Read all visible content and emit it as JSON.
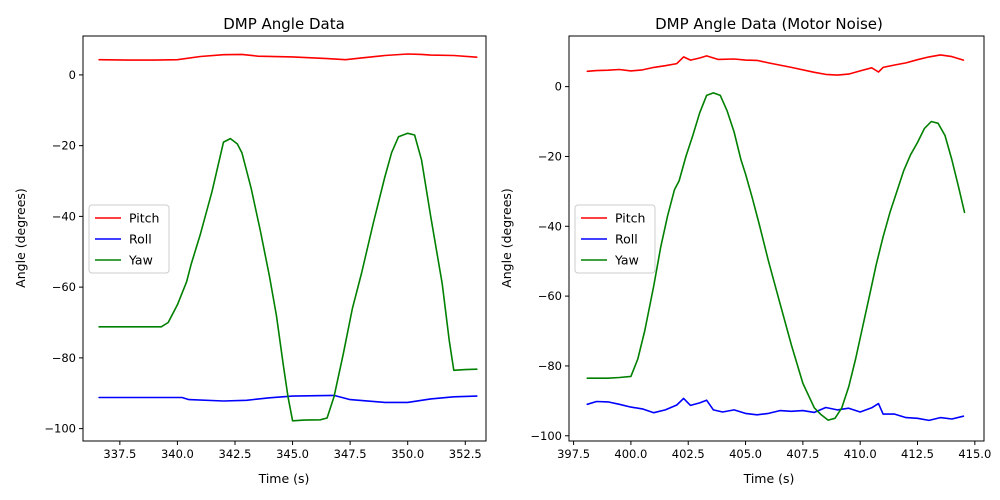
{
  "chart_data": [
    {
      "type": "line",
      "title": "DMP Angle Data",
      "xlabel": "Time (s)",
      "ylabel": "Angle (degrees)",
      "xlim": [
        335.9,
        353.4
      ],
      "ylim": [
        -103.5,
        11.0
      ],
      "xticks": [
        337.5,
        340.0,
        342.5,
        345.0,
        347.5,
        350.0,
        352.5
      ],
      "xtick_labels": [
        "337.5",
        "340.0",
        "342.5",
        "345.0",
        "347.5",
        "350.0",
        "352.5"
      ],
      "yticks": [
        0,
        -20,
        -40,
        -60,
        -80,
        -100
      ],
      "ytick_labels": [
        "0",
        "−20",
        "−40",
        "−60",
        "−80",
        "−100"
      ],
      "grid": false,
      "legend_position": "center-left",
      "series": [
        {
          "name": "Pitch",
          "color": "#ff0000",
          "x": [
            336.6,
            338.0,
            339.0,
            340.0,
            341.0,
            342.0,
            342.8,
            343.5,
            345.0,
            346.5,
            347.3,
            348.0,
            349.0,
            350.0,
            350.6,
            351.0,
            352.0,
            353.0
          ],
          "y": [
            4.3,
            4.2,
            4.2,
            4.3,
            5.2,
            5.7,
            5.8,
            5.3,
            5.1,
            4.6,
            4.3,
            4.8,
            5.5,
            5.9,
            5.8,
            5.6,
            5.5,
            5.0
          ]
        },
        {
          "name": "Roll",
          "color": "#0000ff",
          "x": [
            336.6,
            338.0,
            339.5,
            340.2,
            340.5,
            342.0,
            343.0,
            344.0,
            345.0,
            346.0,
            346.8,
            347.5,
            349.0,
            350.0,
            351.0,
            352.0,
            353.0
          ],
          "y": [
            -91.2,
            -91.2,
            -91.2,
            -91.2,
            -91.8,
            -92.2,
            -92.0,
            -91.3,
            -90.8,
            -90.7,
            -90.6,
            -91.8,
            -92.6,
            -92.6,
            -91.6,
            -91.0,
            -90.8
          ]
        },
        {
          "name": "Yaw",
          "color": "#008000",
          "x": [
            336.6,
            338.0,
            339.3,
            339.6,
            340.0,
            340.4,
            340.6,
            341.0,
            341.5,
            342.0,
            342.3,
            342.6,
            342.8,
            343.2,
            343.6,
            344.0,
            344.3,
            344.6,
            344.8,
            345.0,
            345.5,
            346.2,
            346.5,
            346.8,
            347.2,
            347.6,
            348.0,
            348.5,
            349.0,
            349.3,
            349.6,
            350.0,
            350.3,
            350.6,
            351.0,
            351.5,
            351.8,
            352.0,
            352.5,
            353.0
          ],
          "y": [
            -71.2,
            -71.2,
            -71.2,
            -70.0,
            -65.0,
            -58.5,
            -53.5,
            -45.0,
            -33.0,
            -19.0,
            -18.0,
            -19.5,
            -22.0,
            -32.0,
            -44.0,
            -57.0,
            -68.0,
            -82.0,
            -91.0,
            -97.8,
            -97.6,
            -97.5,
            -97.0,
            -91.0,
            -79.0,
            -66.0,
            -56.0,
            -42.0,
            -29.0,
            -22.0,
            -17.5,
            -16.5,
            -17.0,
            -24.0,
            -40.0,
            -59.0,
            -75.0,
            -83.5,
            -83.3,
            -83.2
          ]
        }
      ]
    },
    {
      "type": "line",
      "title": "DMP Angle Data (Motor Noise)",
      "xlabel": "Time (s)",
      "ylabel": "Angle (degrees)",
      "xlim": [
        397.3,
        415.4
      ],
      "ylim": [
        -101.5,
        14.5
      ],
      "xticks": [
        397.5,
        400.0,
        402.5,
        405.0,
        407.5,
        410.0,
        412.5,
        415.0
      ],
      "xtick_labels": [
        "397.5",
        "400.0",
        "402.5",
        "405.0",
        "407.5",
        "410.0",
        "412.5",
        "415.0"
      ],
      "yticks": [
        0,
        -20,
        -40,
        -60,
        -80,
        -100
      ],
      "ytick_labels": [
        "0",
        "−20",
        "−40",
        "−60",
        "−80",
        "−100"
      ],
      "grid": false,
      "legend_position": "center-left",
      "series": [
        {
          "name": "Pitch",
          "color": "#ff0000",
          "x": [
            398.1,
            398.5,
            399.0,
            399.5,
            400.0,
            400.5,
            401.0,
            401.5,
            402.0,
            402.3,
            402.6,
            403.0,
            403.3,
            403.8,
            404.5,
            405.0,
            405.5,
            406.0,
            407.0,
            408.0,
            408.5,
            409.0,
            409.5,
            410.0,
            410.5,
            410.8,
            411.0,
            411.5,
            412.0,
            412.5,
            413.0,
            413.5,
            414.0,
            414.5
          ],
          "y": [
            4.4,
            4.6,
            4.7,
            4.9,
            4.5,
            4.8,
            5.5,
            6.0,
            6.6,
            8.5,
            7.6,
            8.2,
            8.8,
            7.8,
            7.9,
            7.6,
            7.5,
            6.8,
            5.5,
            4.1,
            3.5,
            3.3,
            3.6,
            4.5,
            5.4,
            4.2,
            5.5,
            6.2,
            6.8,
            7.7,
            8.5,
            9.1,
            8.6,
            7.6
          ]
        },
        {
          "name": "Roll",
          "color": "#0000ff",
          "x": [
            398.1,
            398.5,
            399.0,
            399.5,
            400.0,
            400.5,
            401.0,
            401.5,
            402.0,
            402.3,
            402.6,
            403.0,
            403.3,
            403.6,
            404.0,
            404.5,
            405.0,
            405.5,
            406.0,
            406.5,
            407.0,
            407.5,
            408.0,
            408.5,
            409.0,
            409.5,
            410.0,
            410.5,
            410.8,
            411.0,
            411.5,
            412.0,
            412.5,
            413.0,
            413.5,
            414.0,
            414.5
          ],
          "y": [
            -91.0,
            -90.2,
            -90.3,
            -91.0,
            -91.8,
            -92.3,
            -93.4,
            -92.6,
            -91.2,
            -89.3,
            -91.3,
            -90.6,
            -89.8,
            -92.6,
            -93.2,
            -92.6,
            -93.6,
            -94.0,
            -93.6,
            -92.8,
            -93.0,
            -92.8,
            -93.3,
            -91.9,
            -92.6,
            -92.1,
            -93.2,
            -92.0,
            -90.8,
            -93.8,
            -93.8,
            -94.8,
            -95.0,
            -95.6,
            -94.8,
            -95.2,
            -94.4
          ]
        },
        {
          "name": "Yaw",
          "color": "#008000",
          "x": [
            398.1,
            399.0,
            399.5,
            400.0,
            400.3,
            400.6,
            401.0,
            401.3,
            401.6,
            401.9,
            402.1,
            402.4,
            402.7,
            403.0,
            403.3,
            403.6,
            403.9,
            404.2,
            404.5,
            404.8,
            405.0,
            405.3,
            405.6,
            406.0,
            406.5,
            407.0,
            407.5,
            408.0,
            408.3,
            408.6,
            408.9,
            409.2,
            409.5,
            409.8,
            410.1,
            410.4,
            410.7,
            411.0,
            411.3,
            411.6,
            411.9,
            412.2,
            412.5,
            412.8,
            413.1,
            413.4,
            413.7,
            414.0,
            414.3,
            414.55
          ],
          "y": [
            -83.5,
            -83.5,
            -83.3,
            -83.0,
            -78.0,
            -70.0,
            -57.0,
            -46.0,
            -37.0,
            -29.5,
            -27.0,
            -20.0,
            -14.0,
            -7.5,
            -2.5,
            -1.8,
            -2.5,
            -7.0,
            -13.0,
            -21.0,
            -25.0,
            -32.0,
            -39.5,
            -50.0,
            -62.0,
            -74.0,
            -85.0,
            -92.0,
            -94.0,
            -95.5,
            -95.0,
            -92.0,
            -86.0,
            -78.0,
            -69.0,
            -60.0,
            -51.0,
            -43.0,
            -36.0,
            -30.0,
            -24.0,
            -19.5,
            -16.0,
            -12.0,
            -10.0,
            -10.5,
            -14.0,
            -21.0,
            -29.0,
            -36.0
          ]
        }
      ]
    }
  ]
}
